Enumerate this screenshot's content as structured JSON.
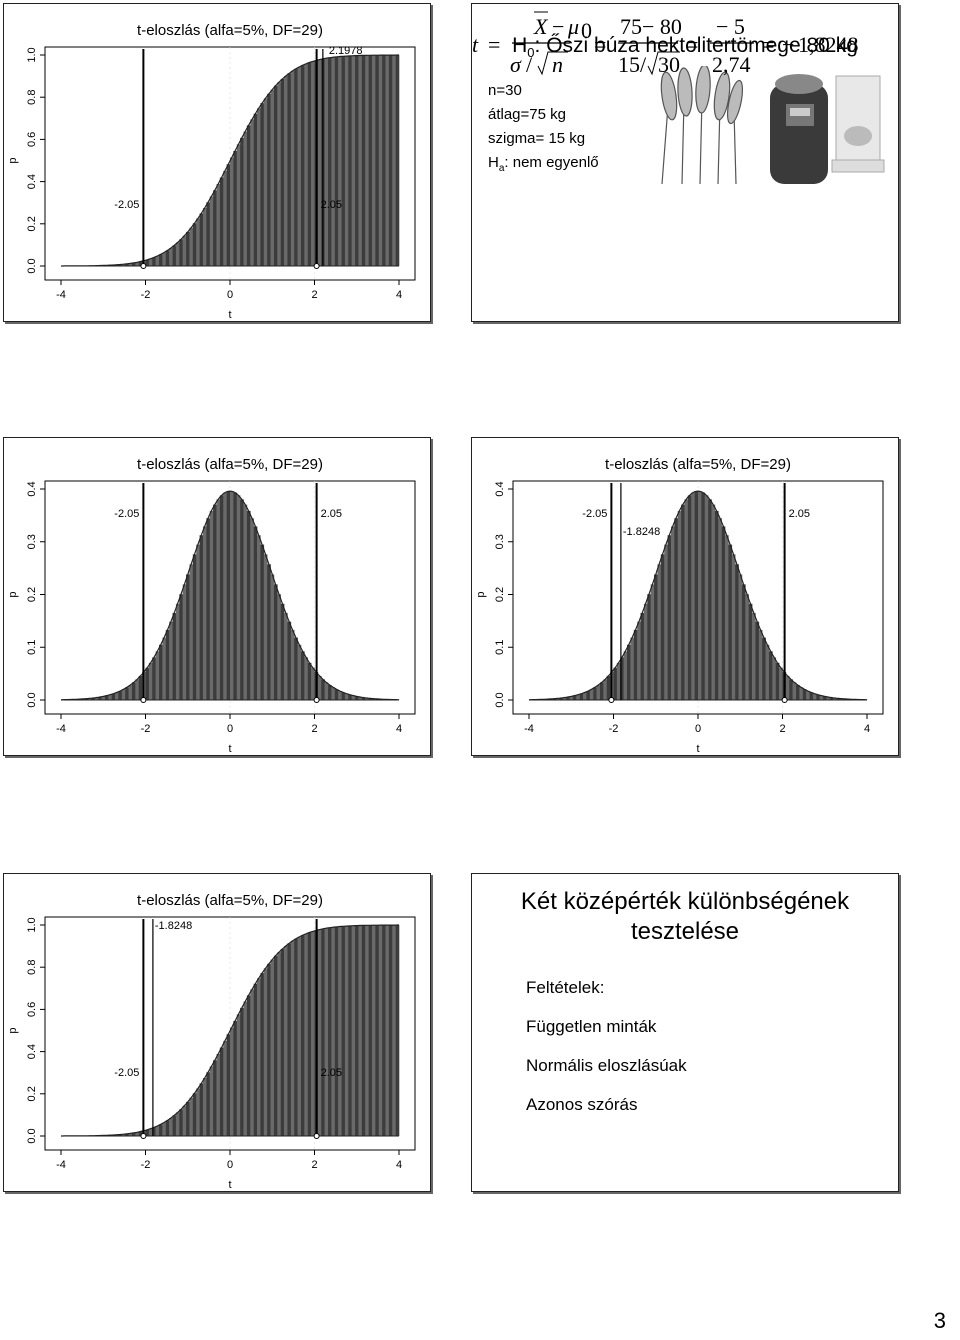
{
  "page_number": "3",
  "slides": {
    "s1": {
      "title": "t-eloszlás (alfa=5%, DF=29)",
      "ylabel": "p",
      "xlabel": "t",
      "yticks": [
        "0.0",
        "0.2",
        "0.4",
        "0.6",
        "0.8",
        "1.0"
      ],
      "xticks": [
        "-4",
        "-2",
        "0",
        "2",
        "4"
      ],
      "ann_left": "-2.05",
      "ann_right": "2.05",
      "ann_top": "2.1978"
    },
    "s2": {
      "title_main": "H",
      "title_sub": "0",
      "title_rest": ": Őszi búza hektolitertömege 80 kg",
      "lines": [
        "n=30",
        "átlag=75 kg",
        "szigma= 15 kg"
      ],
      "ha_main": "H",
      "ha_sub": "a",
      "ha_rest": ": nem egyenlő",
      "eq": {
        "t": "t",
        "eq": "=",
        "X": "X",
        "mu": "μ",
        "mu_sub": "0",
        "sigma": "σ",
        "slash": "/",
        "n": "n",
        "num2": "75− 80",
        "den2a": "15/",
        "den2b": "30",
        "num3": "− 5",
        "den3": "2,74",
        "result": "1,8248",
        "minus": "−"
      }
    },
    "s3": {
      "title": "t-eloszlás (alfa=5%, DF=29)",
      "ylabel": "p",
      "xlabel": "t",
      "yticks": [
        "0.0",
        "0.1",
        "0.2",
        "0.3",
        "0.4"
      ],
      "xticks": [
        "-4",
        "-2",
        "0",
        "2",
        "4"
      ],
      "ann_left": "-2.05",
      "ann_right": "2.05"
    },
    "s4": {
      "title": "t-eloszlás (alfa=5%, DF=29)",
      "ylabel": "p",
      "xlabel": "t",
      "yticks": [
        "0.0",
        "0.1",
        "0.2",
        "0.3",
        "0.4"
      ],
      "xticks": [
        "-4",
        "-2",
        "0",
        "2",
        "4"
      ],
      "ann_left": "-2.05",
      "ann_right": "2.05",
      "ann_stat": "-1.8248"
    },
    "s5": {
      "title": "t-eloszlás (alfa=5%, DF=29)",
      "ylabel": "p",
      "xlabel": "t",
      "yticks": [
        "0.0",
        "0.2",
        "0.4",
        "0.6",
        "0.8",
        "1.0"
      ],
      "xticks": [
        "-4",
        "-2",
        "0",
        "2",
        "4"
      ],
      "ann_left": "-2.05",
      "ann_right": "2.05",
      "ann_stat": "-1.8248"
    },
    "s6": {
      "title_line1": "Két középérték különbségének",
      "title_line2": "tesztelése",
      "items": [
        "Feltételek:",
        "Független minták",
        "Normális eloszlásúak",
        "Azonos szórás"
      ]
    }
  },
  "chart_data": [
    {
      "type": "area",
      "title": "t-eloszlás (alfa=5%, DF=29)",
      "xlabel": "t",
      "ylabel": "p",
      "xlim": [
        -4,
        4
      ],
      "ylim": [
        0,
        1
      ],
      "series": [
        {
          "x": [
            -4,
            -3,
            -2.05,
            -1,
            0,
            1,
            2.05,
            3,
            4
          ],
          "values": [
            0.0002,
            0.0027,
            0.0247,
            0.1628,
            0.5,
            0.8372,
            0.9753,
            0.9973,
            0.9998
          ]
        }
      ],
      "vlines": [
        -2.05,
        2.05,
        2.1978
      ],
      "annotations": [
        "-2.05",
        "2.05",
        "2.1978"
      ]
    },
    {
      "type": "area",
      "title": "t-eloszlás (alfa=5%, DF=29)",
      "xlabel": "t",
      "ylabel": "p",
      "xlim": [
        -4,
        4
      ],
      "ylim": [
        0,
        0.4
      ],
      "series": [
        {
          "x": [
            -4,
            -3,
            -2.05,
            -1,
            0,
            1,
            2.05,
            3,
            4
          ],
          "values": [
            0.0003,
            0.0064,
            0.0498,
            0.2383,
            0.3961,
            0.2383,
            0.0498,
            0.0064,
            0.0003
          ]
        }
      ],
      "vlines": [
        -2.05,
        2.05
      ],
      "annotations": [
        "-2.05",
        "2.05"
      ]
    },
    {
      "type": "area",
      "title": "t-eloszlás (alfa=5%, DF=29)",
      "xlabel": "t",
      "ylabel": "p",
      "xlim": [
        -4,
        4
      ],
      "ylim": [
        0,
        0.4
      ],
      "series": [
        {
          "x": [
            -4,
            -3,
            -2.05,
            -1,
            0,
            1,
            2.05,
            3,
            4
          ],
          "values": [
            0.0003,
            0.0064,
            0.0498,
            0.2383,
            0.3961,
            0.2383,
            0.0498,
            0.0064,
            0.0003
          ]
        }
      ],
      "vlines": [
        -2.05,
        -1.8248,
        2.05
      ],
      "annotations": [
        "-2.05",
        "-1.8248",
        "2.05"
      ]
    },
    {
      "type": "area",
      "title": "t-eloszlás (alfa=5%, DF=29)",
      "xlabel": "t",
      "ylabel": "p",
      "xlim": [
        -4,
        4
      ],
      "ylim": [
        0,
        1
      ],
      "series": [
        {
          "x": [
            -4,
            -3,
            -2.05,
            -1,
            0,
            1,
            2.05,
            3,
            4
          ],
          "values": [
            0.0002,
            0.0027,
            0.0247,
            0.1628,
            0.5,
            0.8372,
            0.9753,
            0.9973,
            0.9998
          ]
        }
      ],
      "vlines": [
        -2.05,
        -1.8248,
        2.05
      ],
      "annotations": [
        "-2.05",
        "-1.8248",
        "2.05"
      ]
    }
  ]
}
